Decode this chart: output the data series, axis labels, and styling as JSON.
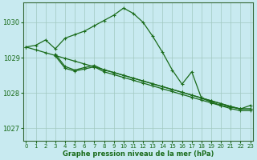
{
  "background_color": "#c8eaf0",
  "grid_color": "#a0c8c0",
  "line_color": "#1a6b1a",
  "xlabel": "Graphe pression niveau de la mer (hPa)",
  "ylim": [
    1026.65,
    1030.55
  ],
  "xlim": [
    -0.3,
    23.3
  ],
  "yticks": [
    1027,
    1028,
    1029,
    1030
  ],
  "xticks": [
    0,
    1,
    2,
    3,
    4,
    5,
    6,
    7,
    8,
    9,
    10,
    11,
    12,
    13,
    14,
    15,
    16,
    17,
    18,
    19,
    20,
    21,
    22,
    23
  ],
  "series": [
    {
      "x": [
        0,
        1,
        2,
        3,
        4,
        5,
        6,
        7,
        8,
        9,
        10,
        11,
        12,
        13,
        14,
        15,
        16,
        17,
        18,
        19,
        20,
        21,
        22,
        23
      ],
      "y": [
        1029.3,
        1029.35,
        1029.5,
        1029.25,
        1029.55,
        1029.65,
        1029.75,
        1029.9,
        1030.05,
        1030.2,
        1030.4,
        1030.25,
        1030.0,
        1029.6,
        1029.15,
        1028.65,
        1028.25,
        1028.6,
        1027.85,
        1027.75,
        1027.65,
        1027.6,
        1027.55,
        1027.65
      ]
    },
    {
      "x": [
        0,
        1,
        2,
        3,
        4,
        5,
        6,
        7,
        8,
        9,
        10,
        11,
        12,
        13,
        14,
        15,
        16,
        17,
        18,
        19,
        20,
        21,
        22,
        23
      ],
      "y": [
        1029.3,
        1029.22,
        1029.14,
        1029.06,
        1028.98,
        1028.9,
        1028.82,
        1028.74,
        1028.66,
        1028.58,
        1028.5,
        1028.42,
        1028.34,
        1028.26,
        1028.18,
        1028.1,
        1028.02,
        1027.94,
        1027.86,
        1027.78,
        1027.7,
        1027.62,
        1027.55,
        1027.55
      ]
    },
    {
      "x": [
        3,
        4,
        5,
        6,
        7,
        8,
        9,
        10,
        11,
        12,
        13,
        14,
        15,
        16,
        17,
        18,
        19,
        20,
        21,
        22,
        23
      ],
      "y": [
        1029.1,
        1028.75,
        1028.65,
        1028.72,
        1028.78,
        1028.65,
        1028.58,
        1028.5,
        1028.42,
        1028.34,
        1028.26,
        1028.18,
        1028.1,
        1028.02,
        1027.94,
        1027.86,
        1027.78,
        1027.7,
        1027.62,
        1027.55,
        1027.55
      ]
    },
    {
      "x": [
        3,
        4,
        5,
        6,
        7,
        8,
        9,
        10,
        11,
        12,
        13,
        14,
        15,
        16,
        17,
        18,
        19,
        20,
        21,
        22,
        23
      ],
      "y": [
        1029.05,
        1028.7,
        1028.62,
        1028.68,
        1028.74,
        1028.6,
        1028.52,
        1028.44,
        1028.36,
        1028.28,
        1028.2,
        1028.12,
        1028.04,
        1027.96,
        1027.88,
        1027.8,
        1027.72,
        1027.64,
        1027.56,
        1027.5,
        1027.5
      ]
    }
  ],
  "marker": "+",
  "markersize": 3.5,
  "linewidth": 0.9
}
